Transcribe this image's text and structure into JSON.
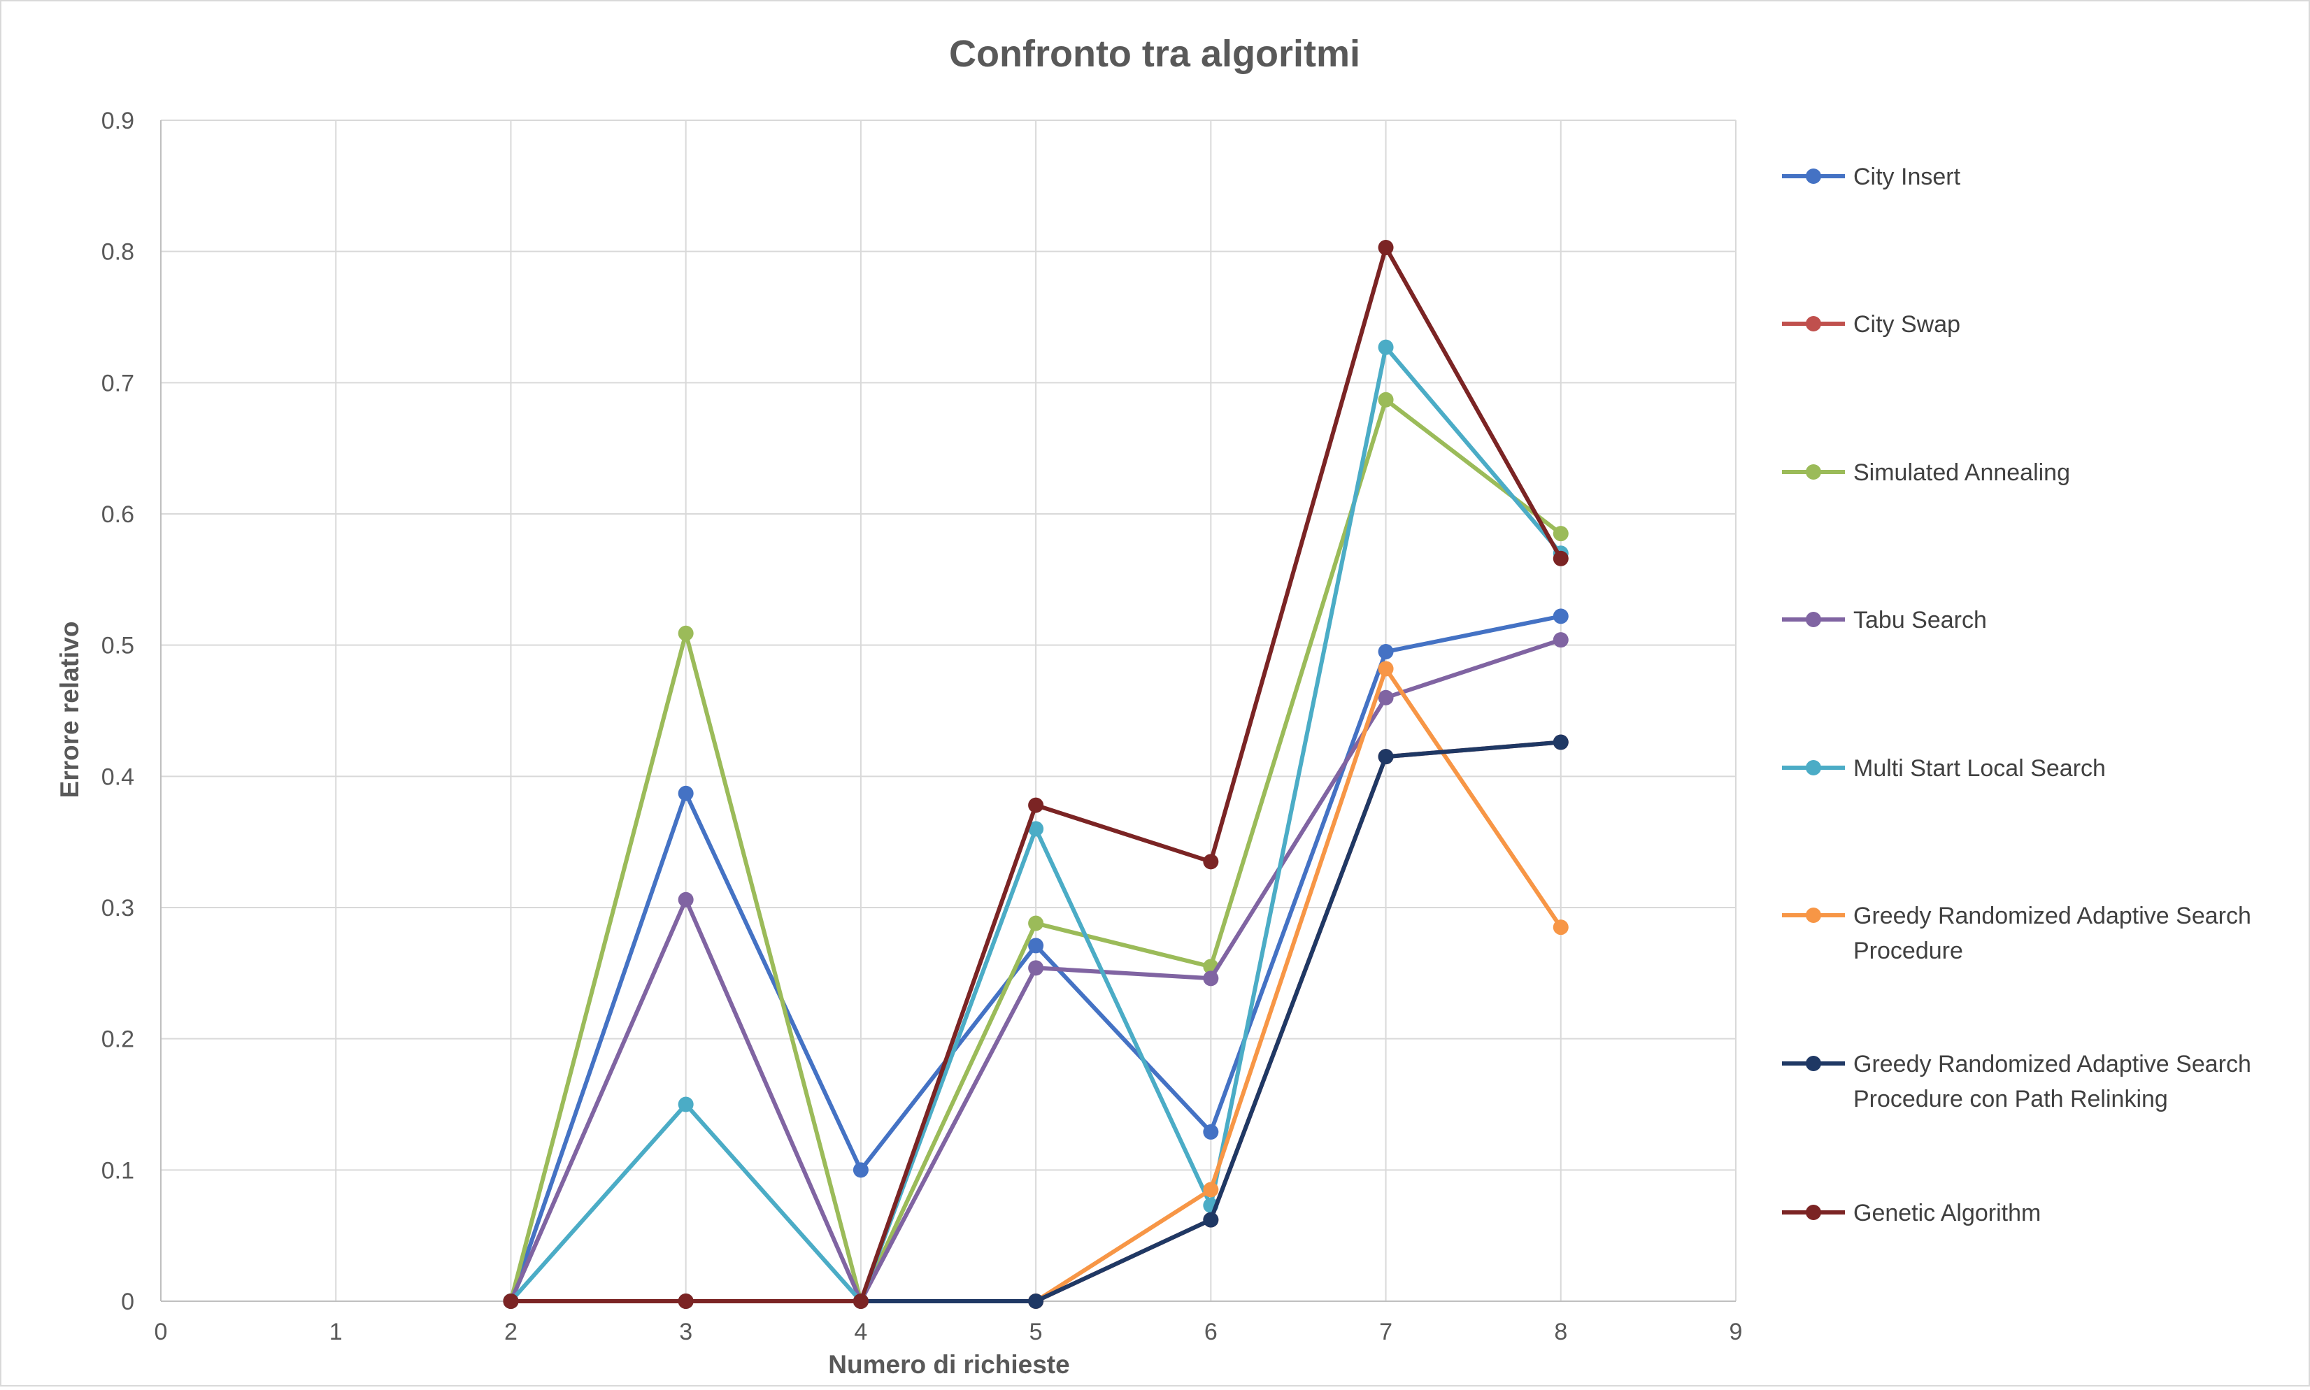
{
  "chart_data": {
    "type": "scatter",
    "title": "Confronto tra algoritmi",
    "xlabel": "Numero di richieste",
    "ylabel": "Errore relativo",
    "xlim": [
      0,
      9
    ],
    "ylim": [
      0,
      0.9
    ],
    "x_ticks": [
      "0",
      "1",
      "2",
      "3",
      "4",
      "5",
      "6",
      "7",
      "8",
      "9"
    ],
    "y_ticks": [
      "0",
      "0.1",
      "0.2",
      "0.3",
      "0.4",
      "0.5",
      "0.6",
      "0.7",
      "0.8",
      "0.9"
    ],
    "grid": true,
    "legend_position": "right",
    "x": [
      2,
      3,
      4,
      5,
      6,
      7,
      8
    ],
    "series": [
      {
        "name": "City Insert",
        "color": "#4472C4",
        "values": [
          0,
          0.387,
          0.1,
          0.271,
          0.129,
          0.495,
          0.522
        ]
      },
      {
        "name": "City Swap",
        "color": "#C0504D",
        "values": [
          0,
          0,
          0,
          0,
          0.062,
          0.415,
          0.426
        ]
      },
      {
        "name": "Simulated Annealing",
        "color": "#9BBB59",
        "values": [
          0,
          0.509,
          0,
          0.288,
          0.255,
          0.687,
          0.585
        ]
      },
      {
        "name": "Tabu Search",
        "color": "#8064A2",
        "values": [
          0,
          0.306,
          0,
          0.254,
          0.246,
          0.46,
          0.504
        ]
      },
      {
        "name": "Multi Start Local Search",
        "color": "#4BACC6",
        "values": [
          0,
          0.15,
          0,
          0.36,
          0.073,
          0.727,
          0.57
        ]
      },
      {
        "name": "Greedy Randomized Adaptive Search Procedure",
        "color": "#F79646",
        "values": [
          0,
          0,
          0,
          0,
          0.085,
          0.482,
          0.285
        ]
      },
      {
        "name": "Greedy Randomized Adaptive Search Procedure con Path Relinking",
        "color": "#1F3864",
        "values": [
          0,
          0,
          0,
          0,
          0.062,
          0.415,
          0.426
        ]
      },
      {
        "name": "Genetic Algorithm",
        "color": "#7B2424",
        "values": [
          0,
          0,
          0,
          0.378,
          0.335,
          0.803,
          0.566
        ]
      }
    ],
    "legend_lines": [
      [
        "City Insert"
      ],
      [
        "City Swap"
      ],
      [
        "Simulated Annealing"
      ],
      [
        "Tabu Search"
      ],
      [
        "Multi Start Local Search"
      ],
      [
        "Greedy Randomized Adaptive Search",
        "Procedure"
      ],
      [
        "Greedy Randomized Adaptive Search",
        "Procedure con Path Relinking"
      ],
      [
        "Genetic Algorithm"
      ]
    ]
  }
}
